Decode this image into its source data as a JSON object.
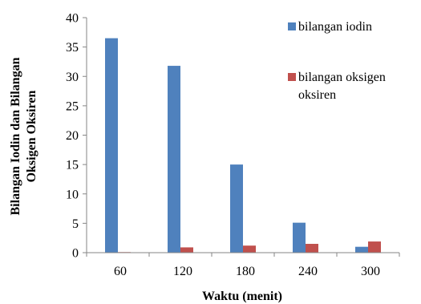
{
  "chart_data": {
    "type": "bar",
    "categories": [
      "60",
      "120",
      "180",
      "240",
      "300"
    ],
    "series": [
      {
        "name": "bilangan iodin",
        "values": [
          36.5,
          31.8,
          15.0,
          5.1,
          1.0
        ],
        "color": "#4F81BD"
      },
      {
        "name": "bilangan oksigen oksiren",
        "values": [
          0.1,
          0.9,
          1.2,
          1.5,
          1.9
        ],
        "color": "#C0504D"
      }
    ],
    "xlabel": "Waktu (menit)",
    "ylabel_lines": [
      "Bilangan Iodin dan Bilangan",
      "Oksigen Oksiren"
    ],
    "ylim": [
      0,
      40
    ],
    "yticks": [
      0,
      5,
      10,
      15,
      20,
      25,
      30,
      35,
      40
    ],
    "grid": false,
    "legend_position": "right",
    "legend_lines": [
      [
        "bilangan iodin"
      ],
      [
        "bilangan oksigen",
        "oksiren"
      ]
    ]
  }
}
